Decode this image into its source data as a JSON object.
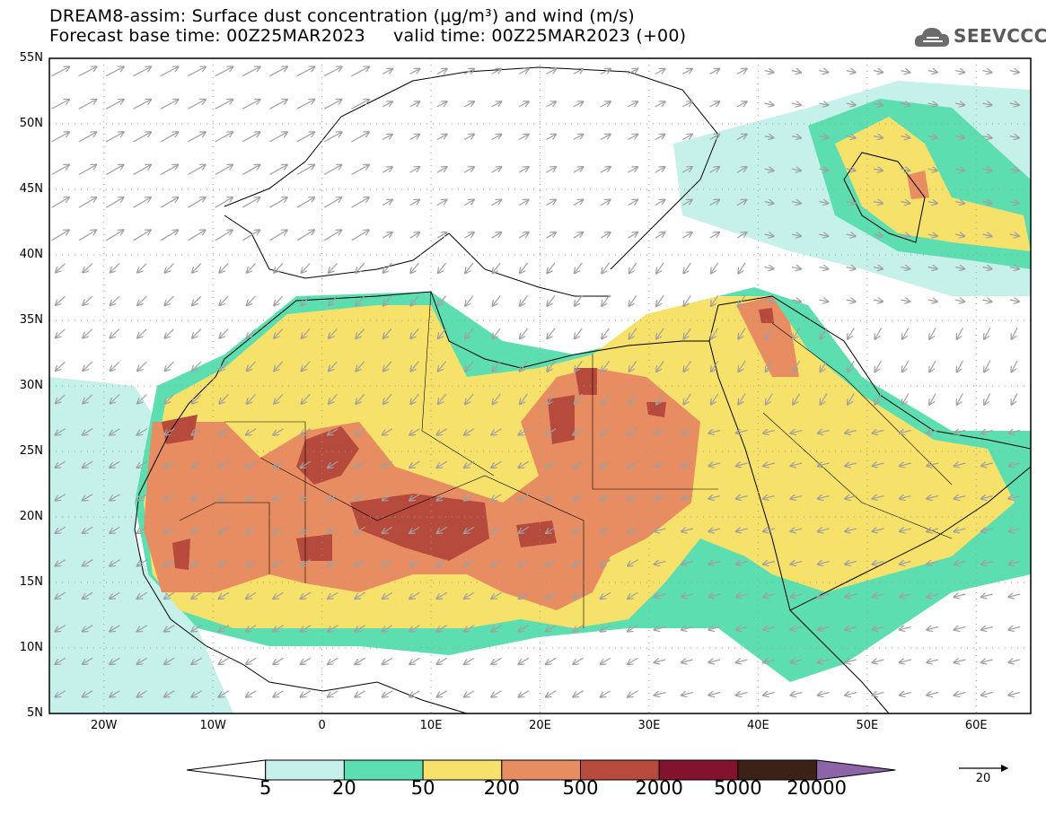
{
  "title": {
    "line1": "DREAM8-assim: Surface dust concentration (μg/m³) and wind (m/s)",
    "line2": "Forecast base time: 00Z25MAR2023     valid time: 00Z25MAR2023 (+00)"
  },
  "logo": {
    "text": "SEEVCCC",
    "icon": "cloud-icon"
  },
  "map": {
    "lat_labels": [
      "55N",
      "50N",
      "45N",
      "40N",
      "35N",
      "30N",
      "25N",
      "20N",
      "15N",
      "10N",
      "5N"
    ],
    "lat_values": [
      55,
      50,
      45,
      40,
      35,
      30,
      25,
      20,
      15,
      10,
      5
    ],
    "lon_labels": [
      "20W",
      "10W",
      "0",
      "10E",
      "20E",
      "30E",
      "40E",
      "50E",
      "60E"
    ],
    "lon_values": [
      -20,
      -10,
      0,
      10,
      20,
      30,
      40,
      50,
      60
    ],
    "lon_range": [
      -25,
      65
    ],
    "lat_range": [
      5,
      55
    ],
    "wind_arrow_color": "#a0a0a0",
    "frame_color": "#000000"
  },
  "colorbar": {
    "labels": [
      "5",
      "20",
      "50",
      "200",
      "500",
      "2000",
      "5000",
      "20000"
    ],
    "colors": [
      "#ffffff",
      "#c6f0ea",
      "#5ddeb0",
      "#f6e16a",
      "#e88c62",
      "#b64a3c",
      "#82122e",
      "#3c2216",
      "#8c64a8"
    ]
  },
  "wind_reference": {
    "label": "20"
  },
  "chart_data": {
    "type": "heatmap",
    "title": "DREAM8-assim: Surface dust concentration (μg/m³) and wind (m/s)",
    "variable": "Surface dust concentration (μg/m³)",
    "levels": [
      5,
      20,
      50,
      200,
      500,
      2000,
      5000,
      20000
    ],
    "xlim": [
      -25,
      65
    ],
    "ylim": [
      5,
      55
    ],
    "x_ticks": [
      "20W",
      "10W",
      "0",
      "10E",
      "20E",
      "30E",
      "40E",
      "50E",
      "60E"
    ],
    "y_ticks": [
      "5N",
      "10N",
      "15N",
      "20N",
      "25N",
      "30N",
      "35N",
      "40N",
      "45N",
      "50N",
      "55N"
    ]
  }
}
